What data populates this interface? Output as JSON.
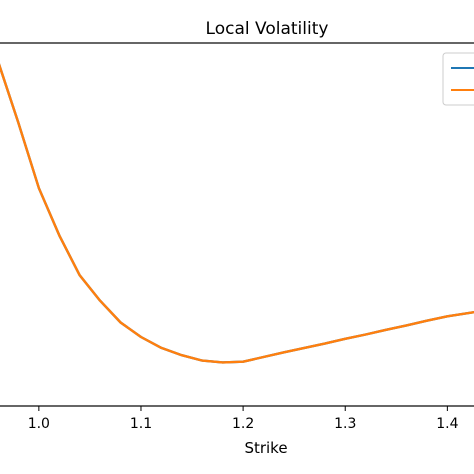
{
  "chart_data": {
    "type": "line",
    "title": "Local Volatility",
    "xlabel": "Strike",
    "ylabel": "",
    "xlim": [
      0.96,
      1.43
    ],
    "ylim": [
      0,
      1
    ],
    "x_ticks": [
      "1.0",
      "1.1",
      "1.2",
      "1.3",
      "1.4"
    ],
    "x_tick_values": [
      1.0,
      1.1,
      1.2,
      1.3,
      1.4
    ],
    "grid": false,
    "legend": "top-right",
    "series": [
      {
        "color": "#1f77b4",
        "x": [
          0.96,
          0.98,
          1.0,
          1.02,
          1.04,
          1.06,
          1.08,
          1.1,
          1.12,
          1.14,
          1.16,
          1.18,
          1.2,
          1.22,
          1.24,
          1.26,
          1.28,
          1.3,
          1.32,
          1.34,
          1.36,
          1.38,
          1.4,
          1.43
        ],
        "y": [
          0.95,
          0.78,
          0.6,
          0.47,
          0.36,
          0.29,
          0.23,
          0.19,
          0.16,
          0.14,
          0.125,
          0.12,
          0.122,
          0.135,
          0.148,
          0.16,
          0.172,
          0.185,
          0.197,
          0.21,
          0.222,
          0.235,
          0.247,
          0.26
        ]
      },
      {
        "color": "#ff7f0e",
        "x": [
          0.96,
          0.98,
          1.0,
          1.02,
          1.04,
          1.06,
          1.08,
          1.1,
          1.12,
          1.14,
          1.16,
          1.18,
          1.2,
          1.22,
          1.24,
          1.26,
          1.28,
          1.3,
          1.32,
          1.34,
          1.36,
          1.38,
          1.4,
          1.43
        ],
        "y": [
          0.95,
          0.78,
          0.6,
          0.47,
          0.36,
          0.29,
          0.23,
          0.19,
          0.16,
          0.14,
          0.125,
          0.12,
          0.122,
          0.135,
          0.148,
          0.16,
          0.172,
          0.185,
          0.197,
          0.21,
          0.222,
          0.235,
          0.247,
          0.26
        ]
      }
    ]
  }
}
